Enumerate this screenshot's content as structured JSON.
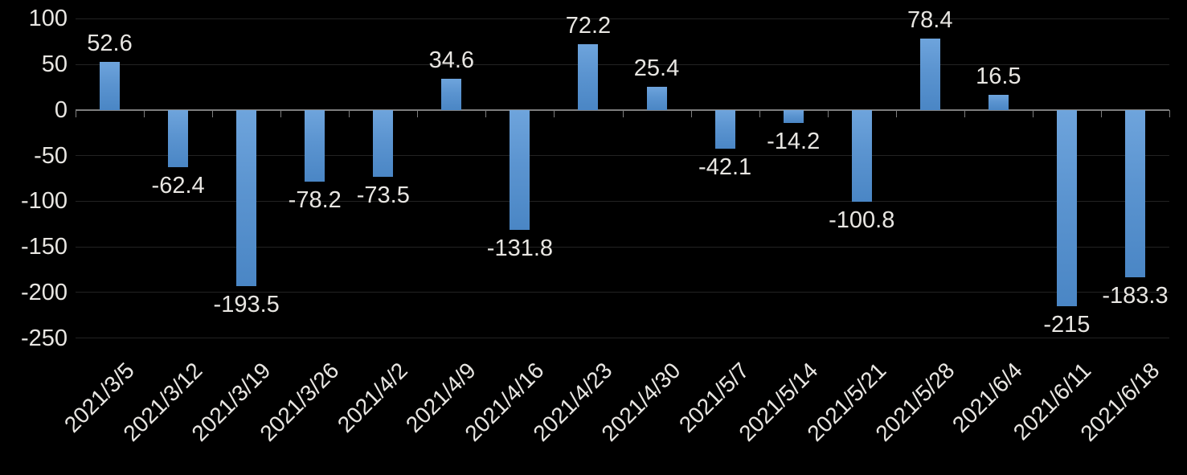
{
  "chart_data": {
    "type": "bar",
    "title": "",
    "xlabel": "",
    "ylabel": "",
    "categories": [
      "2021/3/5",
      "2021/3/12",
      "2021/3/19",
      "2021/3/26",
      "2021/4/2",
      "2021/4/9",
      "2021/4/16",
      "2021/4/23",
      "2021/4/30",
      "2021/5/7",
      "2021/5/14",
      "2021/5/21",
      "2021/5/28",
      "2021/6/4",
      "2021/6/11",
      "2021/6/18"
    ],
    "values": [
      52.6,
      -62.4,
      -193.5,
      -78.2,
      -73.5,
      34.6,
      -131.8,
      72.2,
      25.4,
      -42.1,
      -14.2,
      -100.8,
      78.4,
      16.5,
      -215,
      -183.3
    ],
    "data_labels": [
      "52.6",
      "-62.4",
      "-193.5",
      "-78.2",
      "-73.5",
      "34.6",
      "-131.8",
      "72.2",
      "25.4",
      "-42.1",
      "-14.2",
      "-100.8",
      "78.4",
      "16.5",
      "-215",
      "-183.3"
    ],
    "y_ticks": [
      100,
      50,
      0,
      -50,
      -100,
      -150,
      -200,
      -250
    ],
    "ylim": [
      -250,
      100
    ],
    "grid": true,
    "legend": false,
    "series_count": 1,
    "colors": {
      "background": "#000000",
      "bar_top": "#6ea4dc",
      "bar_bottom": "#4a86c5",
      "gridline": "#232323",
      "axis_line": "#7e7e7e",
      "text": "#e8e6e2"
    }
  }
}
